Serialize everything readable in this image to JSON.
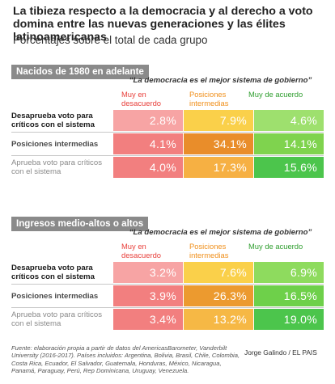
{
  "title": "La tibieza respecto a la democracia y al derecho a voto domina entre las nuevas generaciones y las élites latinoamericanas",
  "subtitle": "Porcentajes sobre el total de cada grupo",
  "chart_data": [
    {
      "type": "table",
      "section": "Nacidos de 1980 en adelante",
      "quote": "“La democracia es el mejor sistema de gobierno”",
      "columns": [
        "Muy en desacuerdo",
        "Posiciones intermedias",
        "Muy de acuerdo"
      ],
      "rows": [
        {
          "label": "Desaprueba voto para críticos con el sistema",
          "values": [
            2.8,
            7.9,
            4.6
          ],
          "display": [
            "2.8%",
            "7.9%",
            "4.6%"
          ]
        },
        {
          "label": "Posiciones intermedias",
          "values": [
            4.1,
            34.1,
            14.1
          ],
          "display": [
            "4.1%",
            "34.1%",
            "14.1%"
          ]
        },
        {
          "label": "Aprueba voto para críticos con el sistema",
          "values": [
            4.0,
            17.3,
            15.6
          ],
          "display": [
            "4.0%",
            "17.3%",
            "15.6%"
          ]
        }
      ]
    },
    {
      "type": "table",
      "section": "Ingresos medio-altos o altos",
      "quote": "“La democracia es el mejor sistema de gobierno”",
      "columns": [
        "Muy en desacuerdo",
        "Posiciones intermedias",
        "Muy de acuerdo"
      ],
      "rows": [
        {
          "label": "Desaprueba voto para críticos con el sistema",
          "values": [
            3.2,
            7.6,
            6.9
          ],
          "display": [
            "3.2%",
            "7.6%",
            "6.9%"
          ]
        },
        {
          "label": "Posiciones intermedias",
          "values": [
            3.9,
            26.3,
            16.5
          ],
          "display": [
            "3.9%",
            "26.3%",
            "16.5%"
          ]
        },
        {
          "label": "Aprueba voto para críticos con el sistema",
          "values": [
            3.4,
            13.2,
            19.0
          ],
          "display": [
            "3.4%",
            "13.2%",
            "19.0%"
          ]
        }
      ]
    }
  ],
  "colors": {
    "header_red": "#e8413c",
    "header_orange": "#f0901c",
    "header_green": "#2f9e2f",
    "row_desaprueba": "#1a1a1a",
    "row_intermedias": "#4a4a4a",
    "row_aprueba": "#8a8a8a",
    "cells": [
      [
        [
          "#f7a4a4",
          "#fad04a",
          "#9ee06e"
        ],
        [
          "#f27f7f",
          "#e98d2a",
          "#7fd34e"
        ],
        [
          "#f27f7f",
          "#f6b043",
          "#4cc54c"
        ]
      ],
      [
        [
          "#f7a4a4",
          "#fad04a",
          "#8edb5e"
        ],
        [
          "#f27f7f",
          "#ec9a2f",
          "#6ed04a"
        ],
        [
          "#f27f7f",
          "#f6b845",
          "#4cc54c"
        ]
      ]
    ]
  },
  "footnote": "Fuente: elaboración propia a partir de datos del AmericasBarometer, Vanderbilt University (2016-2017). Países incluidos: Argentina, Bolivia, Brasil, Chile, Colombia, Costa Rica, Ecuador, El Salvador, Guatemala, Honduras, México, Nicaragua, Panamá, Paraguay, Perú, Rep Dominicana, Uruguay, Venezuela.",
  "credit": "Jorge Galindo / EL PAIS"
}
